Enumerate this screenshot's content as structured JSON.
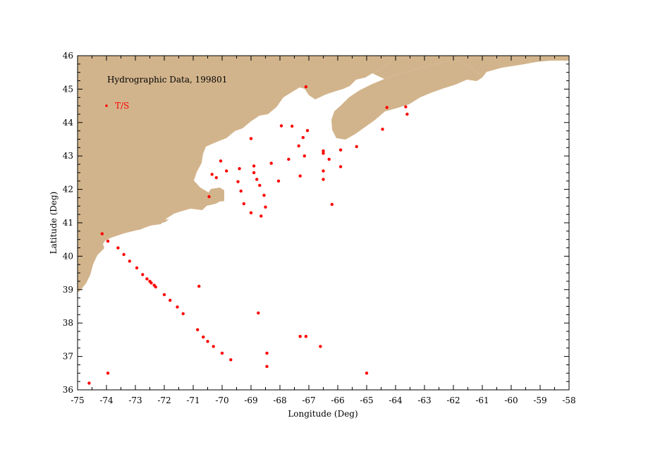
{
  "chart_data": {
    "type": "scatter",
    "title": "Hydrographic Data, 199801",
    "xlabel": "Longitude (Deg)",
    "ylabel": "Latitude (Deg)",
    "xlim": [
      -75,
      -58
    ],
    "ylim": [
      36,
      46
    ],
    "x_ticks": [
      "-75",
      "-74",
      "-73",
      "-72",
      "-71",
      "-70",
      "-69",
      "-68",
      "-67",
      "-66",
      "-65",
      "-64",
      "-63",
      "-62",
      "-61",
      "-60",
      "-59",
      "-58"
    ],
    "y_ticks": [
      "36",
      "37",
      "38",
      "39",
      "40",
      "41",
      "42",
      "43",
      "44",
      "45",
      "46"
    ],
    "grid": false,
    "legend_position": "top-left",
    "colors": {
      "land": "#d2b48c",
      "points": "#ff0000"
    },
    "series": [
      {
        "name": "T/S",
        "points": [
          [
            -67.1,
            45.07
          ],
          [
            -64.3,
            44.45
          ],
          [
            -63.65,
            44.47
          ],
          [
            -63.6,
            44.25
          ],
          [
            -64.45,
            43.8
          ],
          [
            -67.95,
            43.9
          ],
          [
            -67.58,
            43.89
          ],
          [
            -67.05,
            43.76
          ],
          [
            -67.2,
            43.55
          ],
          [
            -69.0,
            43.52
          ],
          [
            -67.35,
            43.3
          ],
          [
            -67.15,
            43.0
          ],
          [
            -66.5,
            43.15
          ],
          [
            -66.5,
            43.08
          ],
          [
            -65.9,
            43.18
          ],
          [
            -65.35,
            43.28
          ],
          [
            -70.05,
            42.85
          ],
          [
            -69.4,
            42.62
          ],
          [
            -69.85,
            42.55
          ],
          [
            -68.9,
            42.7
          ],
          [
            -68.3,
            42.78
          ],
          [
            -67.7,
            42.9
          ],
          [
            -66.3,
            42.9
          ],
          [
            -66.5,
            42.55
          ],
          [
            -65.9,
            42.68
          ],
          [
            -70.35,
            42.45
          ],
          [
            -70.2,
            42.35
          ],
          [
            -69.45,
            42.23
          ],
          [
            -68.9,
            42.5
          ],
          [
            -68.8,
            42.3
          ],
          [
            -68.7,
            42.12
          ],
          [
            -68.05,
            42.25
          ],
          [
            -67.3,
            42.4
          ],
          [
            -66.5,
            42.3
          ],
          [
            -69.35,
            41.95
          ],
          [
            -68.55,
            41.82
          ],
          [
            -70.45,
            41.78
          ],
          [
            -69.25,
            41.57
          ],
          [
            -68.5,
            41.47
          ],
          [
            -69.0,
            41.3
          ],
          [
            -68.65,
            41.2
          ],
          [
            -66.2,
            41.55
          ],
          [
            -74.15,
            40.67
          ],
          [
            -73.95,
            40.45
          ],
          [
            -73.6,
            40.25
          ],
          [
            -73.4,
            40.05
          ],
          [
            -73.2,
            39.85
          ],
          [
            -72.95,
            39.65
          ],
          [
            -72.75,
            39.45
          ],
          [
            -72.6,
            39.32
          ],
          [
            -72.5,
            39.25
          ],
          [
            -72.45,
            39.2
          ],
          [
            -72.35,
            39.13
          ],
          [
            -72.3,
            39.08
          ],
          [
            -72.0,
            38.85
          ],
          [
            -71.8,
            38.68
          ],
          [
            -71.55,
            38.48
          ],
          [
            -71.35,
            38.28
          ],
          [
            -70.85,
            37.8
          ],
          [
            -70.65,
            37.58
          ],
          [
            -70.5,
            37.45
          ],
          [
            -70.3,
            37.3
          ],
          [
            -70.0,
            37.1
          ],
          [
            -69.7,
            36.9
          ],
          [
            -70.8,
            39.1
          ],
          [
            -68.75,
            38.3
          ],
          [
            -68.45,
            37.1
          ],
          [
            -68.45,
            36.7
          ],
          [
            -67.3,
            37.6
          ],
          [
            -67.1,
            37.6
          ],
          [
            -66.6,
            37.3
          ],
          [
            -65.0,
            36.5
          ],
          [
            -74.6,
            36.2
          ],
          [
            -73.95,
            36.5
          ]
        ]
      }
    ]
  }
}
